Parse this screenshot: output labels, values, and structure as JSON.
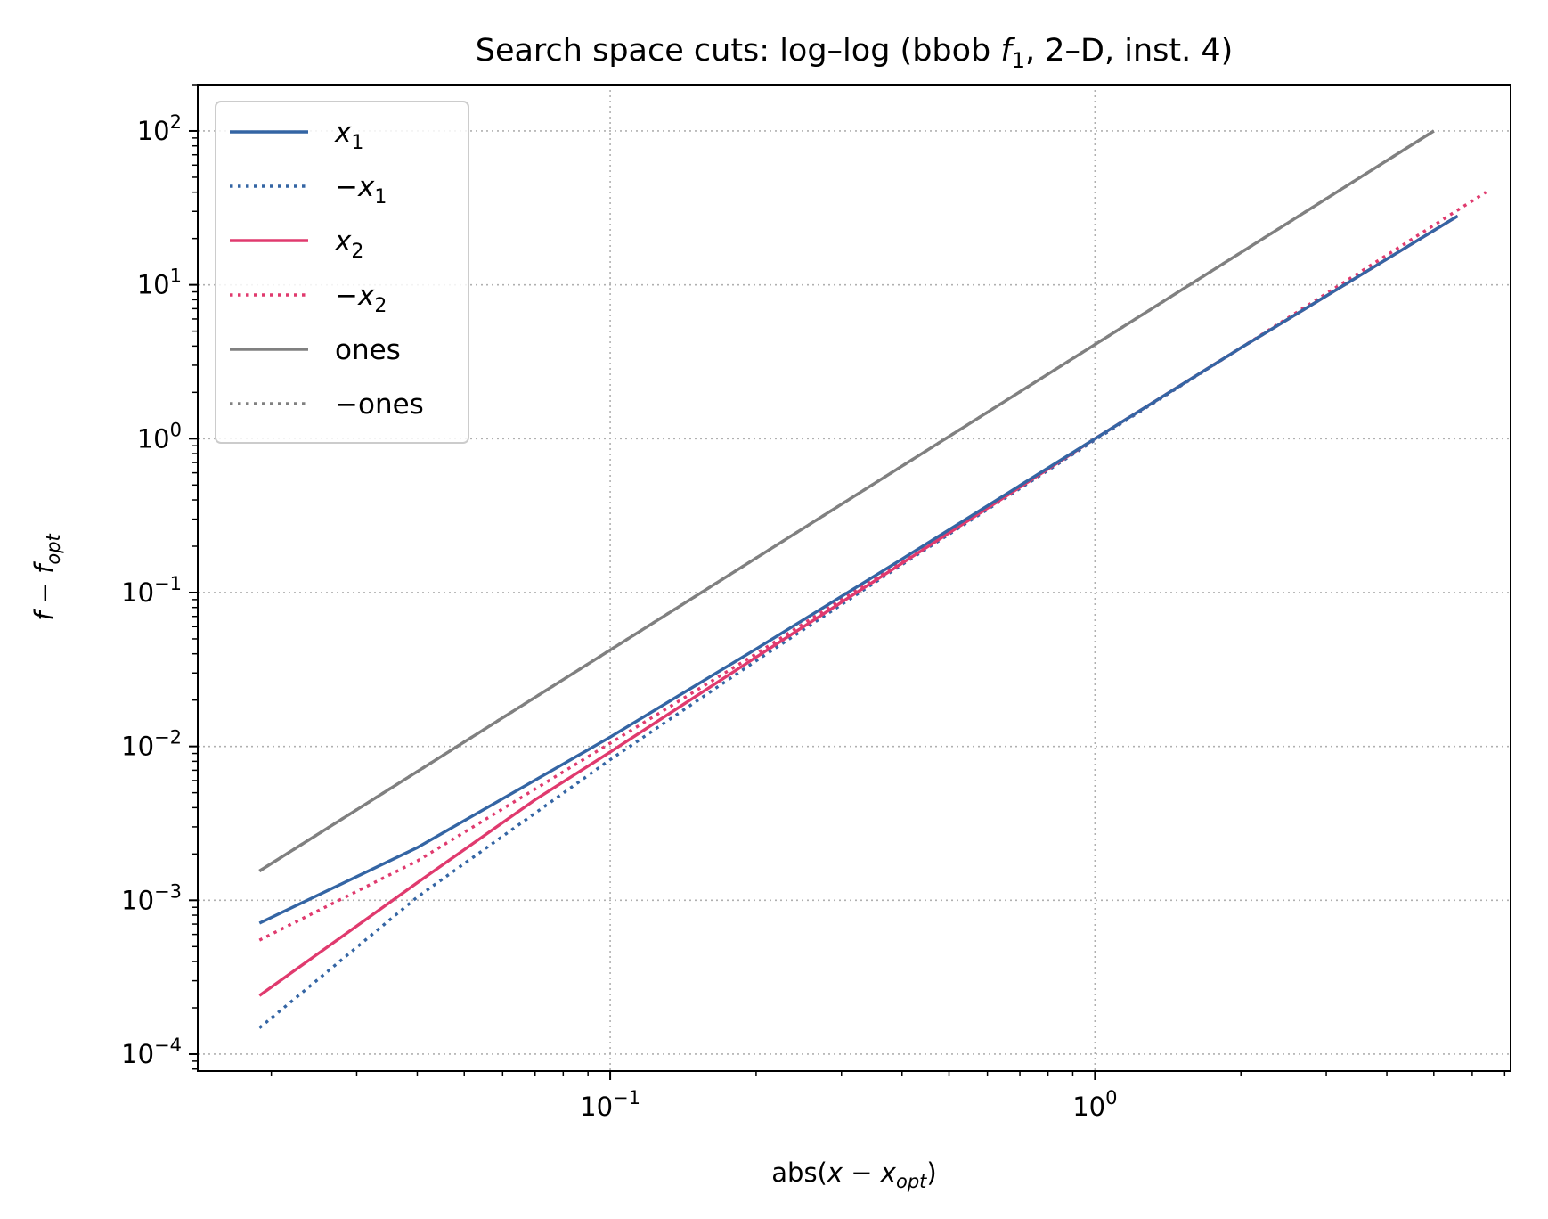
{
  "chart_data": {
    "type": "line",
    "title": "Search space cuts: log–log (bbob f1, 2–D, inst. 4)",
    "xlabel": "abs(x − x_opt)",
    "ylabel": "f − f_opt",
    "xscale": "log",
    "yscale": "log",
    "xlim": [
      0.0141,
      7.2
    ],
    "ylim": [
      7.76e-05,
      200
    ],
    "grid": true,
    "legend_position": "top-left",
    "x_ticks": [
      0.1,
      1
    ],
    "x_tick_labels": [
      "10^-1",
      "10^0"
    ],
    "y_ticks": [
      0.0001,
      0.001,
      0.01,
      0.1,
      1,
      10,
      100
    ],
    "y_tick_labels": [
      "10^-4",
      "10^-3",
      "10^-2",
      "10^-1",
      "10^0",
      "10^1",
      "10^2"
    ],
    "series": [
      {
        "name": "x1",
        "color": "#3465a4",
        "dash": "solid",
        "x": [
          0.0189,
          0.04,
          0.1,
          0.2,
          0.4,
          1,
          2,
          5.6
        ],
        "y": [
          0.00071,
          0.0022,
          0.0115,
          0.043,
          0.165,
          1.0,
          3.9,
          28
        ]
      },
      {
        "name": "−x1",
        "color": "#3465a4",
        "dash": "dotted",
        "x": [
          0.0189,
          0.04,
          0.1,
          0.2,
          0.4,
          1,
          2,
          5.6
        ],
        "y": [
          0.000148,
          0.00105,
          0.0082,
          0.036,
          0.152,
          0.98,
          3.9,
          28
        ]
      },
      {
        "name": "x2",
        "color": "#e03a6e",
        "dash": "solid",
        "x": [
          0.0189,
          0.04,
          0.07,
          0.1,
          0.2,
          0.4,
          1,
          2,
          5.6
        ],
        "y": [
          0.00024,
          0.0013,
          0.0045,
          0.0092,
          0.038,
          0.155,
          1.0,
          3.9,
          28
        ]
      },
      {
        "name": "−x2",
        "color": "#e03a6e",
        "dash": "dotted",
        "x": [
          0.0189,
          0.04,
          0.1,
          0.2,
          0.4,
          1,
          2,
          6.4
        ],
        "y": [
          0.00055,
          0.0018,
          0.0105,
          0.04,
          0.16,
          1.0,
          3.9,
          40
        ]
      },
      {
        "name": "ones",
        "color": "#808080",
        "dash": "solid",
        "x": [
          0.0189,
          5.0
        ],
        "y": [
          0.00155,
          100
        ]
      },
      {
        "name": "−ones",
        "color": "#808080",
        "dash": "dotted",
        "x": [
          0.0189,
          5.0
        ],
        "y": [
          0.00155,
          100
        ]
      }
    ]
  }
}
